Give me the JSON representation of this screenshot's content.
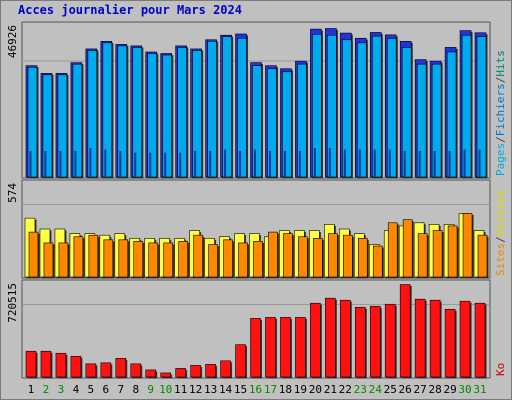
{
  "title": "Acces journalier pour Mars 2024",
  "chart_data": [
    {
      "type": "bar",
      "panel": "top",
      "categories": [
        "1",
        "2",
        "3",
        "4",
        "5",
        "6",
        "7",
        "8",
        "9",
        "10",
        "11",
        "12",
        "13",
        "14",
        "15",
        "16",
        "17",
        "18",
        "19",
        "20",
        "21",
        "22",
        "23",
        "24",
        "25",
        "26",
        "27",
        "28",
        "29",
        "30",
        "31"
      ],
      "weekend_days": [
        "2",
        "3",
        "9",
        "10",
        "16",
        "17",
        "23",
        "24",
        "30",
        "31"
      ],
      "ylabel_value": "46926",
      "ylim": [
        0,
        50500
      ],
      "legend": [
        {
          "text": "Pages",
          "color": "#00aadd"
        },
        {
          "text": "/",
          "color": "#444444"
        },
        {
          "text": "Fichiers",
          "color": "#0077cc"
        },
        {
          "text": "/",
          "color": "#444444"
        },
        {
          "text": "Hits",
          "color": "#008877"
        }
      ],
      "series": [
        {
          "name": "Hits",
          "color": "#2233dd",
          "values": [
            36500,
            34000,
            34000,
            37500,
            42000,
            44500,
            43500,
            43000,
            41000,
            40500,
            43000,
            42000,
            45000,
            46500,
            46900,
            37500,
            36500,
            35500,
            38000,
            48500,
            48700,
            47200,
            45500,
            47400,
            46600,
            44500,
            38500,
            38000,
            42500,
            48000,
            47300
          ]
        },
        {
          "name": "Fichiers",
          "color": "#00aaee",
          "values": [
            36000,
            33500,
            33500,
            37000,
            41500,
            44000,
            43000,
            42500,
            40500,
            40000,
            42500,
            41500,
            44500,
            46000,
            45500,
            36500,
            35500,
            34500,
            37000,
            46800,
            46500,
            45000,
            44000,
            46200,
            45400,
            42500,
            37000,
            37000,
            41000,
            46500,
            46000
          ]
        },
        {
          "name": "Pages",
          "color": "#0a3aa0",
          "values": [
            8500,
            8500,
            8500,
            8500,
            9500,
            9000,
            8500,
            8000,
            8000,
            8000,
            8000,
            8500,
            8500,
            9000,
            8500,
            9000,
            8500,
            8500,
            8500,
            9500,
            9500,
            9000,
            9000,
            9000,
            9000,
            8500,
            8500,
            8500,
            8500,
            9000,
            9000
          ]
        }
      ]
    },
    {
      "type": "bar",
      "panel": "middle",
      "ylabel_value": "574",
      "ylim": [
        0,
        620
      ],
      "legend": [
        {
          "text": "Sites",
          "color": "#ee8800"
        },
        {
          "text": "/",
          "color": "#444444"
        },
        {
          "text": "Visites",
          "color": "#dddd00"
        }
      ],
      "series": [
        {
          "name": "Visites",
          "color": "#ffff44",
          "values": [
            380,
            310,
            310,
            280,
            280,
            270,
            280,
            250,
            250,
            250,
            250,
            300,
            250,
            260,
            280,
            280,
            260,
            300,
            300,
            300,
            340,
            310,
            280,
            210,
            300,
            330,
            350,
            340,
            340,
            410,
            300
          ]
        },
        {
          "name": "Sites",
          "color": "#ff8800",
          "values": [
            290,
            220,
            220,
            260,
            270,
            240,
            240,
            230,
            220,
            220,
            230,
            270,
            210,
            240,
            220,
            230,
            290,
            280,
            260,
            250,
            280,
            270,
            250,
            200,
            350,
            370,
            280,
            300,
            330,
            410,
            270
          ]
        }
      ]
    },
    {
      "type": "bar",
      "panel": "bottom",
      "ylabel_value": "720515",
      "ylim": [
        0,
        950000
      ],
      "legend": [
        {
          "text": "Ko",
          "color": "#cc0000"
        }
      ],
      "series": [
        {
          "name": "Ko",
          "color": "#ff1111",
          "values": [
            255000,
            255000,
            235000,
            205000,
            130000,
            140000,
            185000,
            130000,
            70000,
            40000,
            85000,
            115000,
            125000,
            160000,
            320000,
            580000,
            590000,
            590000,
            590000,
            730000,
            780000,
            760000,
            690000,
            700000,
            720000,
            915000,
            770000,
            760000,
            670000,
            750000,
            730000
          ]
        }
      ]
    }
  ]
}
